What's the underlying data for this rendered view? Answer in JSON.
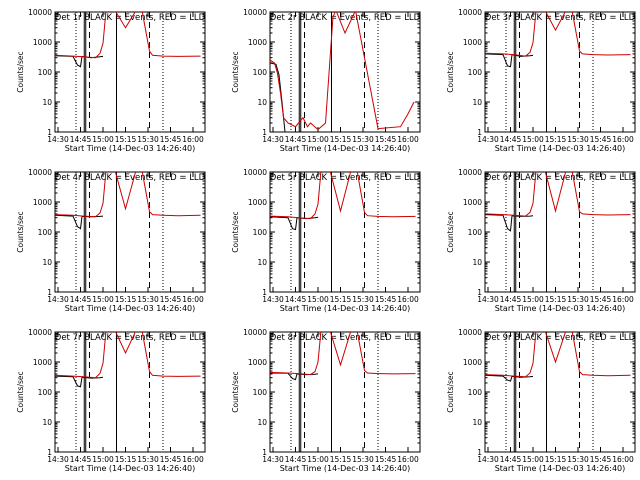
{
  "figure": {
    "xlabel": "Start Time (14-Dec-03 14:26:40)",
    "ylabel": "Counts/sec",
    "x_tick_labels": [
      "14:30",
      "14:45",
      "15:00",
      "15:15",
      "15:30",
      "15:45",
      "16:00"
    ],
    "y_tick_labels": [
      "1",
      "10",
      "100",
      "1000",
      "10000"
    ],
    "colors": {
      "events": "#000000",
      "lld": "#cc0000",
      "axes": "#000000",
      "background": "#ffffff"
    }
  },
  "chart_data": [
    {
      "type": "line",
      "title": "Det 1r BLACK = Events, RED = LLD",
      "xlabel": "Start Time (14-Dec-03 14:26:40)",
      "ylabel": "Counts/sec",
      "y_scale": "log",
      "ylim": [
        1,
        10000
      ],
      "xlim": [
        "14:28",
        "16:08"
      ],
      "series": [
        {
          "name": "Events",
          "color": "#000000",
          "x": [
            "14:28",
            "14:40",
            "14:43",
            "14:45",
            "14:46",
            "14:52",
            "14:58",
            "15:00"
          ],
          "values": [
            350,
            330,
            170,
            150,
            330,
            300,
            320,
            330
          ]
        },
        {
          "name": "LLD",
          "color": "#cc0000",
          "x": [
            "14:28",
            "14:40",
            "14:47",
            "14:55",
            "14:58",
            "15:00",
            "15:02",
            "15:08",
            "15:15",
            "15:22",
            "15:26",
            "15:31",
            "15:33",
            "15:40",
            "15:50",
            "16:05"
          ],
          "values": [
            360,
            340,
            320,
            300,
            420,
            900,
            12000,
            12000,
            3000,
            12000,
            12000,
            500,
            360,
            340,
            330,
            340
          ]
        }
      ]
    },
    {
      "type": "line",
      "title": "Det 2r BLACK = Events, RED = LLD",
      "xlabel": "Start Time (14-Dec-03 14:26:40)",
      "ylabel": "Counts/sec",
      "y_scale": "log",
      "ylim": [
        1,
        10000
      ],
      "xlim": [
        "14:28",
        "16:08"
      ],
      "series": [
        {
          "name": "Events",
          "color": "#000000",
          "x": [
            "14:28",
            "14:32",
            "14:34",
            "14:36",
            "14:38"
          ],
          "values": [
            200,
            180,
            80,
            10,
            1
          ]
        },
        {
          "name": "LLD",
          "color": "#cc0000",
          "x": [
            "14:28",
            "14:31",
            "14:33",
            "14:35",
            "14:37",
            "14:40",
            "14:45",
            "14:50",
            "14:53",
            "14:55",
            "15:00",
            "15:05",
            "15:10",
            "15:12",
            "15:18",
            "15:25",
            "15:40",
            "15:55",
            "16:00",
            "16:04"
          ],
          "values": [
            250,
            200,
            90,
            20,
            3,
            2,
            1.5,
            3,
            1.5,
            2,
            1.2,
            2,
            7000,
            12000,
            2000,
            12000,
            1.3,
            1.5,
            4,
            10
          ]
        }
      ]
    },
    {
      "type": "line",
      "title": "Det 3r BLACK = Events, RED = LLD",
      "xlabel": "Start Time (14-Dec-03 14:26:40)",
      "ylabel": "Counts/sec",
      "y_scale": "log",
      "ylim": [
        1,
        10000
      ],
      "xlim": [
        "14:28",
        "16:08"
      ],
      "series": [
        {
          "name": "Events",
          "color": "#000000",
          "x": [
            "14:28",
            "14:40",
            "14:43",
            "14:45",
            "14:46",
            "14:52",
            "14:58",
            "15:00"
          ],
          "values": [
            400,
            380,
            160,
            150,
            380,
            330,
            350,
            360
          ]
        },
        {
          "name": "LLD",
          "color": "#cc0000",
          "x": [
            "14:28",
            "14:40",
            "14:47",
            "14:55",
            "14:58",
            "15:00",
            "15:02",
            "15:08",
            "15:15",
            "15:22",
            "15:26",
            "15:31",
            "15:33",
            "15:40",
            "15:50",
            "16:05"
          ],
          "values": [
            420,
            400,
            380,
            340,
            450,
            950,
            12000,
            12000,
            2500,
            12000,
            12000,
            500,
            400,
            380,
            370,
            380
          ]
        }
      ]
    },
    {
      "type": "line",
      "title": "Det 4r BLACK = Events, RED = LLD",
      "xlabel": "Start Time (14-Dec-03 14:26:40)",
      "ylabel": "Counts/sec",
      "y_scale": "log",
      "ylim": [
        1,
        10000
      ],
      "xlim": [
        "14:28",
        "16:08"
      ],
      "series": [
        {
          "name": "Events",
          "color": "#000000",
          "x": [
            "14:28",
            "14:40",
            "14:43",
            "14:45",
            "14:46",
            "14:52",
            "14:58",
            "15:00"
          ],
          "values": [
            360,
            340,
            150,
            130,
            330,
            320,
            330,
            340
          ]
        },
        {
          "name": "LLD",
          "color": "#cc0000",
          "x": [
            "14:28",
            "14:40",
            "14:47",
            "14:55",
            "14:58",
            "15:00",
            "15:02",
            "15:08",
            "15:15",
            "15:22",
            "15:26",
            "15:31",
            "15:33",
            "15:40",
            "15:50",
            "16:05"
          ],
          "values": [
            380,
            360,
            340,
            320,
            430,
            900,
            12000,
            12000,
            600,
            12000,
            12000,
            480,
            380,
            360,
            350,
            360
          ]
        }
      ]
    },
    {
      "type": "line",
      "title": "Det 5r BLACK = Events, RED = LLD",
      "xlabel": "Start Time (14-Dec-03 14:26:40)",
      "ylabel": "Counts/sec",
      "y_scale": "log",
      "ylim": [
        1,
        10000
      ],
      "xlim": [
        "14:28",
        "16:08"
      ],
      "series": [
        {
          "name": "Events",
          "color": "#000000",
          "x": [
            "14:28",
            "14:40",
            "14:43",
            "14:45",
            "14:46",
            "14:52",
            "14:58",
            "15:00"
          ],
          "values": [
            320,
            300,
            130,
            120,
            300,
            280,
            300,
            310
          ]
        },
        {
          "name": "LLD",
          "color": "#cc0000",
          "x": [
            "14:28",
            "14:40",
            "14:47",
            "14:55",
            "14:58",
            "15:00",
            "15:02",
            "15:08",
            "15:15",
            "15:22",
            "15:26",
            "15:31",
            "15:33",
            "15:40",
            "15:50",
            "16:05"
          ],
          "values": [
            340,
            320,
            300,
            280,
            400,
            850,
            12000,
            12000,
            500,
            12000,
            12000,
            450,
            350,
            330,
            320,
            330
          ]
        }
      ]
    },
    {
      "type": "line",
      "title": "Det 6r BLACK = Events, RED = LLD",
      "xlabel": "Start Time (14-Dec-03 14:26:40)",
      "ylabel": "Counts/sec",
      "y_scale": "log",
      "ylim": [
        1,
        10000
      ],
      "xlim": [
        "14:28",
        "16:08"
      ],
      "series": [
        {
          "name": "Events",
          "color": "#000000",
          "x": [
            "14:28",
            "14:40",
            "14:43",
            "14:45",
            "14:46",
            "14:52",
            "14:58",
            "15:00"
          ],
          "values": [
            380,
            360,
            130,
            110,
            350,
            330,
            340,
            350
          ]
        },
        {
          "name": "LLD",
          "color": "#cc0000",
          "x": [
            "14:28",
            "14:40",
            "14:47",
            "14:55",
            "14:58",
            "15:00",
            "15:02",
            "15:08",
            "15:15",
            "15:22",
            "15:26",
            "15:31",
            "15:33",
            "15:40",
            "15:50",
            "16:05"
          ],
          "values": [
            400,
            380,
            360,
            340,
            450,
            900,
            12000,
            12000,
            500,
            12000,
            12000,
            480,
            400,
            380,
            370,
            380
          ]
        }
      ]
    },
    {
      "type": "line",
      "title": "Det 7r BLACK = Events, RED = LLD",
      "xlabel": "Start Time (14-Dec-03 14:26:40)",
      "ylabel": "Counts/sec",
      "y_scale": "log",
      "ylim": [
        1,
        10000
      ],
      "xlim": [
        "14:28",
        "16:08"
      ],
      "series": [
        {
          "name": "Events",
          "color": "#000000",
          "x": [
            "14:28",
            "14:40",
            "14:43",
            "14:45",
            "14:46",
            "14:52",
            "14:58",
            "15:00"
          ],
          "values": [
            340,
            320,
            160,
            150,
            310,
            290,
            300,
            310
          ]
        },
        {
          "name": "LLD",
          "color": "#cc0000",
          "x": [
            "14:28",
            "14:40",
            "14:47",
            "14:55",
            "14:58",
            "15:00",
            "15:02",
            "15:08",
            "15:15",
            "15:22",
            "15:26",
            "15:31",
            "15:33",
            "15:40",
            "15:50",
            "16:05"
          ],
          "values": [
            360,
            340,
            320,
            300,
            420,
            900,
            12000,
            12000,
            2000,
            12000,
            12000,
            480,
            360,
            340,
            330,
            340
          ]
        }
      ]
    },
    {
      "type": "line",
      "title": "Det 8r BLACK = Events, RED = LLD",
      "xlabel": "Start Time (14-Dec-03 14:26:40)",
      "ylabel": "Counts/sec",
      "y_scale": "log",
      "ylim": [
        1,
        10000
      ],
      "xlim": [
        "14:28",
        "16:08"
      ],
      "series": [
        {
          "name": "Events",
          "color": "#000000",
          "x": [
            "14:28",
            "14:40",
            "14:43",
            "14:45",
            "14:46",
            "14:52",
            "14:58",
            "15:00"
          ],
          "values": [
            430,
            420,
            280,
            260,
            400,
            380,
            390,
            400
          ]
        },
        {
          "name": "LLD",
          "color": "#cc0000",
          "x": [
            "14:28",
            "14:40",
            "14:47",
            "14:55",
            "14:58",
            "15:00",
            "15:02",
            "15:08",
            "15:15",
            "15:22",
            "15:26",
            "15:31",
            "15:33",
            "15:40",
            "15:50",
            "16:05"
          ],
          "values": [
            450,
            430,
            410,
            380,
            480,
            1000,
            12000,
            12000,
            800,
            12000,
            12000,
            520,
            430,
            410,
            400,
            410
          ]
        }
      ]
    },
    {
      "type": "line",
      "title": "Det 9r BLACK = Events, RED = LLD",
      "xlabel": "Start Time (14-Dec-03 14:26:40)",
      "ylabel": "Counts/sec",
      "y_scale": "log",
      "ylim": [
        1,
        10000
      ],
      "xlim": [
        "14:28",
        "16:08"
      ],
      "series": [
        {
          "name": "Events",
          "color": "#000000",
          "x": [
            "14:28",
            "14:40",
            "14:43",
            "14:45",
            "14:46",
            "14:52",
            "14:58",
            "15:00"
          ],
          "values": [
            360,
            340,
            250,
            230,
            330,
            310,
            320,
            330
          ]
        },
        {
          "name": "LLD",
          "color": "#cc0000",
          "x": [
            "14:28",
            "14:40",
            "14:47",
            "14:55",
            "14:58",
            "15:00",
            "15:02",
            "15:08",
            "15:15",
            "15:22",
            "15:26",
            "15:31",
            "15:33",
            "15:40",
            "15:50",
            "16:05"
          ],
          "values": [
            380,
            360,
            340,
            320,
            430,
            900,
            12000,
            12000,
            1000,
            12000,
            12000,
            480,
            380,
            360,
            350,
            360
          ]
        }
      ]
    }
  ]
}
